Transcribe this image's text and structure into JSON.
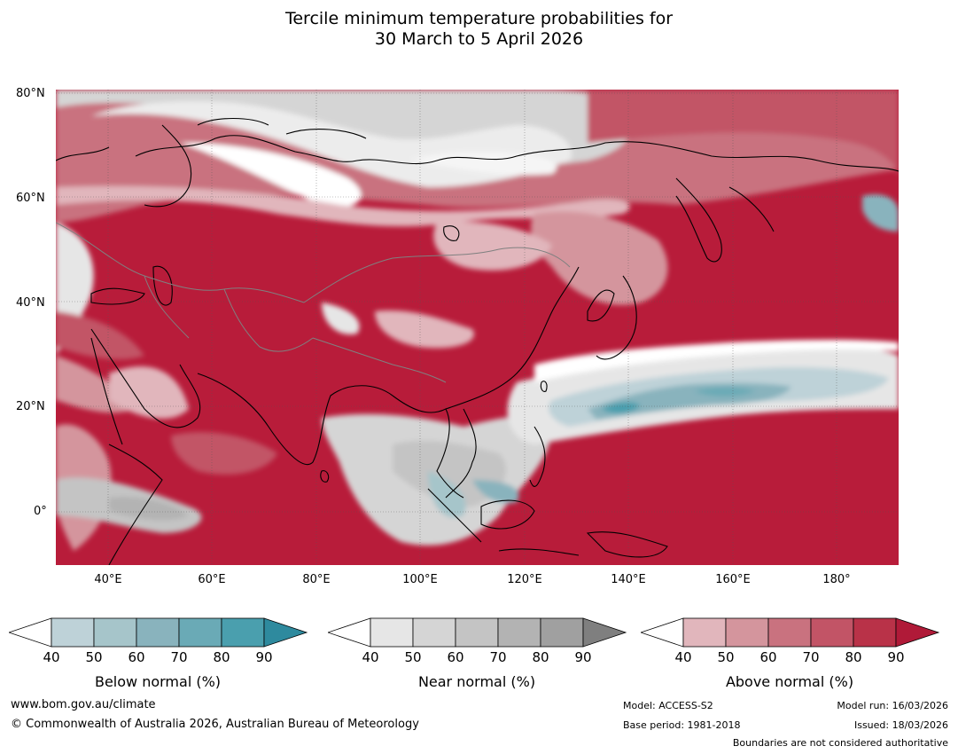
{
  "title": {
    "line1": "Tercile minimum temperature probabilities for",
    "line2": "30 March to 5 April 2026"
  },
  "map": {
    "lat_labels": [
      "80°N",
      "60°N",
      "40°N",
      "20°N",
      "0°"
    ],
    "lon_labels": [
      "40°E",
      "60°E",
      "80°E",
      "100°E",
      "120°E",
      "140°E",
      "160°E",
      "180°"
    ]
  },
  "colorbars": [
    {
      "label": "Below normal (%)",
      "ticks": [
        "40",
        "50",
        "60",
        "70",
        "80",
        "90"
      ],
      "colors": [
        "#ffffff",
        "#bed2d8",
        "#a6c5ca",
        "#89b3bd",
        "#6aaab6",
        "#4a9fae",
        "#2e8a9e"
      ]
    },
    {
      "label": "Near normal (%)",
      "ticks": [
        "40",
        "50",
        "60",
        "70",
        "80",
        "90"
      ],
      "colors": [
        "#ffffff",
        "#e6e6e6",
        "#d5d5d5",
        "#c4c4c4",
        "#b3b3b3",
        "#a0a0a0",
        "#7f7f7f"
      ]
    },
    {
      "label": "Above normal (%)",
      "ticks": [
        "40",
        "50",
        "60",
        "70",
        "80",
        "90"
      ],
      "colors": [
        "#ffffff",
        "#e1b6bc",
        "#d4959d",
        "#c9727f",
        "#c25466",
        "#b93248",
        "#b01a38"
      ]
    }
  ],
  "footer": {
    "website": "www.bom.gov.au/climate",
    "copyright": "© Commonwealth of Australia 2026, Australian Bureau of Meteorology",
    "model": "Model: ACCESS-S2",
    "base_period": "Base period: 1981-2018",
    "model_run": "Model run: 16/03/2026",
    "issued": "Issued: 18/03/2026",
    "disclaimer": "Boundaries are not considered authoritative"
  }
}
